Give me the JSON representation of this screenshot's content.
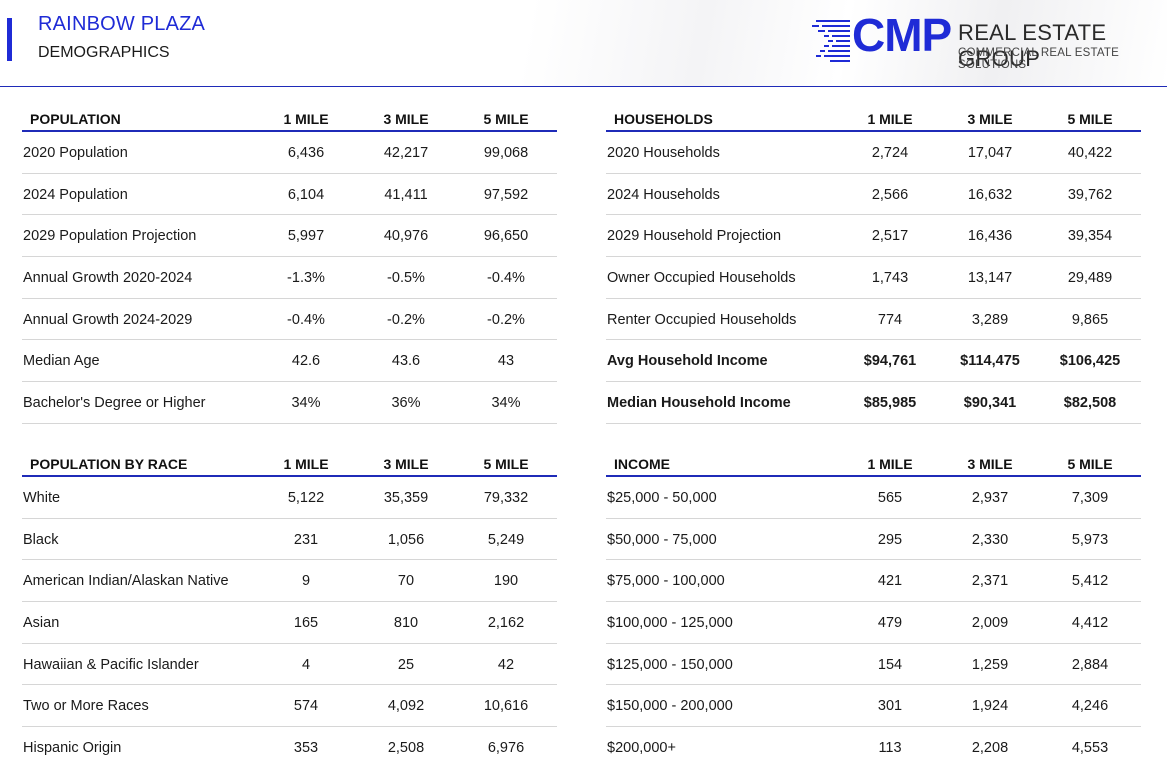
{
  "header": {
    "title": "RAINBOW PLAZA",
    "subtitle": "DEMOGRAPHICS",
    "logo": {
      "mark": "CMP",
      "name": "REAL ESTATE GROUP",
      "tagline": "COMMERCIAL REAL ESTATE SOLUTIONS",
      "color": "#1f2bd6"
    }
  },
  "tables": {
    "population": {
      "headers": [
        "POPULATION",
        "1 MILE",
        "3 MILE",
        "5 MILE"
      ],
      "rows": [
        [
          "2020 Population",
          "6,436",
          "42,217",
          "99,068"
        ],
        [
          "2024 Population",
          "6,104",
          "41,411",
          "97,592"
        ],
        [
          "2029 Population Projection",
          "5,997",
          "40,976",
          "96,650"
        ],
        [
          "Annual Growth 2020-2024",
          "-1.3%",
          "-0.5%",
          "-0.4%"
        ],
        [
          "Annual Growth 2024-2029",
          "-0.4%",
          "-0.2%",
          "-0.2%"
        ],
        [
          "Median Age",
          "42.6",
          "43.6",
          "43"
        ],
        [
          "Bachelor's Degree or Higher",
          "34%",
          "36%",
          "34%"
        ]
      ]
    },
    "households": {
      "headers": [
        "HOUSEHOLDS",
        "1 MILE",
        "3 MILE",
        "5 MILE"
      ],
      "rows": [
        [
          "2020 Households",
          "2,724",
          "17,047",
          "40,422"
        ],
        [
          "2024 Households",
          "2,566",
          "16,632",
          "39,762"
        ],
        [
          "2029 Household Projection",
          "2,517",
          "16,436",
          "39,354"
        ],
        [
          "Owner Occupied Households",
          "1,743",
          "13,147",
          "29,489"
        ],
        [
          "Renter Occupied Households",
          "774",
          "3,289",
          "9,865"
        ],
        [
          "Avg Household Income",
          "$94,761",
          "$114,475",
          "$106,425"
        ],
        [
          "Median Household Income",
          "$85,985",
          "$90,341",
          "$82,508"
        ]
      ]
    },
    "race": {
      "headers": [
        "POPULATION BY RACE",
        "1 MILE",
        "3 MILE",
        "5 MILE"
      ],
      "rows": [
        [
          "White",
          "5,122",
          "35,359",
          "79,332"
        ],
        [
          "Black",
          "231",
          "1,056",
          "5,249"
        ],
        [
          "American Indian/Alaskan Native",
          "9",
          "70",
          "190"
        ],
        [
          "Asian",
          "165",
          "810",
          "2,162"
        ],
        [
          "Hawaiian & Pacific Islander",
          "4",
          "25",
          "42"
        ],
        [
          "Two or More Races",
          "574",
          "4,092",
          "10,616"
        ],
        [
          "Hispanic Origin",
          "353",
          "2,508",
          "6,976"
        ]
      ]
    },
    "income": {
      "headers": [
        "INCOME",
        "1 MILE",
        "3 MILE",
        "5 MILE"
      ],
      "rows": [
        [
          "$25,000 - 50,000",
          "565",
          "2,937",
          "7,309"
        ],
        [
          "$50,000 - 75,000",
          "295",
          "2,330",
          "5,973"
        ],
        [
          "$75,000 - 100,000",
          "421",
          "2,371",
          "5,412"
        ],
        [
          "$100,000 - 125,000",
          "479",
          "2,009",
          "4,412"
        ],
        [
          "$125,000 - 150,000",
          "154",
          "1,259",
          "2,884"
        ],
        [
          "$150,000 - 200,000",
          "301",
          "1,924",
          "4,246"
        ],
        [
          "$200,000+",
          "113",
          "2,208",
          "4,553"
        ]
      ]
    }
  }
}
